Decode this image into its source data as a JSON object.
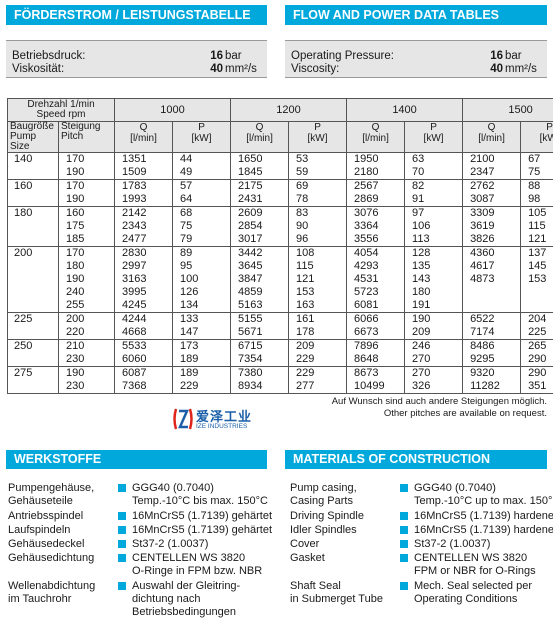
{
  "headers": {
    "left_title": "FÖRDERSTROM / LEISTUNGSTABELLE",
    "right_title": "FLOW AND POWER DATA TABLES"
  },
  "conditions": {
    "de": [
      {
        "label": "Betriebsdruck:",
        "value": "16",
        "unit": "bar"
      },
      {
        "label": "Viskosität:",
        "value": "40",
        "unit": "mm²/s"
      }
    ],
    "en": [
      {
        "label": "Operating Pressure:",
        "value": "16",
        "unit": "bar"
      },
      {
        "label": "Viscosity:",
        "value": "40",
        "unit": "mm²/s"
      }
    ]
  },
  "table": {
    "speed_label_de": "Drehzahl 1/min",
    "speed_label_en": "Speed rpm",
    "size_label_de": "Baugröße",
    "size_label_en": "Pump Size",
    "pitch_label_de": "Steigung",
    "pitch_label_en": "Pitch",
    "speeds": [
      "1000",
      "1200",
      "1400",
      "1500"
    ],
    "q_label": "Q",
    "q_unit": "[l/min]",
    "p_label": "P",
    "p_unit": "[kW]",
    "groups": [
      {
        "size": "140",
        "rows": [
          {
            "pitch": "170",
            "v": [
              "1351",
              "44",
              "1650",
              "53",
              "1950",
              "63",
              "2100",
              "67"
            ]
          },
          {
            "pitch": "190",
            "v": [
              "1509",
              "49",
              "1845",
              "59",
              "2180",
              "70",
              "2347",
              "75"
            ]
          }
        ]
      },
      {
        "size": "160",
        "rows": [
          {
            "pitch": "170",
            "v": [
              "1783",
              "57",
              "2175",
              "69",
              "2567",
              "82",
              "2762",
              "88"
            ]
          },
          {
            "pitch": "190",
            "v": [
              "1993",
              "64",
              "2431",
              "78",
              "2869",
              "91",
              "3087",
              "98"
            ]
          }
        ]
      },
      {
        "size": "180",
        "rows": [
          {
            "pitch": "160",
            "v": [
              "2142",
              "68",
              "2609",
              "83",
              "3076",
              "97",
              "3309",
              "105"
            ]
          },
          {
            "pitch": "175",
            "v": [
              "2343",
              "75",
              "2854",
              "90",
              "3364",
              "106",
              "3619",
              "115"
            ]
          },
          {
            "pitch": "185",
            "v": [
              "2477",
              "79",
              "3017",
              "96",
              "3556",
              "113",
              "3826",
              "121"
            ]
          }
        ]
      },
      {
        "size": "200",
        "rows": [
          {
            "pitch": "170",
            "v": [
              "2830",
              "89",
              "3442",
              "108",
              "4054",
              "128",
              "4360",
              "137"
            ]
          },
          {
            "pitch": "180",
            "v": [
              "2997",
              "95",
              "3645",
              "115",
              "4293",
              "135",
              "4617",
              "145"
            ]
          },
          {
            "pitch": "190",
            "v": [
              "3163",
              "100",
              "3847",
              "121",
              "4531",
              "143",
              "4873",
              "153"
            ]
          },
          {
            "pitch": "240",
            "v": [
              "3995",
              "126",
              "4859",
              "153",
              "5723",
              "180",
              "",
              ""
            ]
          },
          {
            "pitch": "255",
            "v": [
              "4245",
              "134",
              "5163",
              "163",
              "6081",
              "191",
              "",
              ""
            ]
          }
        ]
      },
      {
        "size": "225",
        "rows": [
          {
            "pitch": "200",
            "v": [
              "4244",
              "133",
              "5155",
              "161",
              "6066",
              "190",
              "6522",
              "204"
            ]
          },
          {
            "pitch": "220",
            "v": [
              "4668",
              "147",
              "5671",
              "178",
              "6673",
              "209",
              "7174",
              "225"
            ]
          }
        ]
      },
      {
        "size": "250",
        "rows": [
          {
            "pitch": "210",
            "v": [
              "5533",
              "173",
              "6715",
              "209",
              "7896",
              "246",
              "8486",
              "265"
            ]
          },
          {
            "pitch": "230",
            "v": [
              "6060",
              "189",
              "7354",
              "229",
              "8648",
              "270",
              "9295",
              "290"
            ]
          }
        ]
      },
      {
        "size": "275",
        "rows": [
          {
            "pitch": "190",
            "v": [
              "6087",
              "189",
              "7380",
              "229",
              "8673",
              "270",
              "9320",
              "290"
            ]
          },
          {
            "pitch": "230",
            "v": [
              "7368",
              "229",
              "8934",
              "277",
              "10499",
              "326",
              "11282",
              "351"
            ]
          }
        ]
      }
    ]
  },
  "notes": {
    "de": "Auf Wunsch sind auch andere Steigungen möglich.",
    "en": "Other pitches are available on request."
  },
  "logo": {
    "text_cn": "爱泽工业",
    "text_en": "IZE INDUSTRIES"
  },
  "materials": {
    "de_title": "WERKSTOFFE",
    "en_title": "MATERIALS OF CONSTRUCTION",
    "de": [
      {
        "part": [
          "Pumpengehäuse,",
          "Gehäuseteile"
        ],
        "mat": [
          "GGG40 (0.7040)",
          "Temp.-10°C bis max. 150°C"
        ]
      },
      {
        "part": [
          "Antriebsspindel"
        ],
        "mat": [
          "16MnCrS5 (1.7139) gehärtet"
        ]
      },
      {
        "part": [
          "Laufspindeln"
        ],
        "mat": [
          "16MnCrS5 (1.7139) gehärtet"
        ]
      },
      {
        "part": [
          "Gehäusedeckel"
        ],
        "mat": [
          "St37-2 (1.0037)"
        ]
      },
      {
        "part": [
          "Gehäusedichtung"
        ],
        "mat": [
          "CENTELLEN WS 3820",
          "O-Ringe in FPM bzw. NBR"
        ]
      },
      {
        "part": [
          "Wellenabdichtung",
          "im Tauchrohr"
        ],
        "mat": [
          "Auswahl der Gleitring-",
          "dichtung nach",
          "Betriebsbedingungen"
        ]
      }
    ],
    "en": [
      {
        "part": [
          "Pump casing,",
          "Casing Parts"
        ],
        "mat": [
          "GGG40 (0.7040)",
          "Temp.-10°C up to max. 150°C"
        ]
      },
      {
        "part": [
          "Driving Spindle"
        ],
        "mat": [
          "16MnCrS5 (1.7139) hardened"
        ]
      },
      {
        "part": [
          "Idler Spindles"
        ],
        "mat": [
          "16MnCrS5 (1.7139) hardened"
        ]
      },
      {
        "part": [
          "Cover"
        ],
        "mat": [
          "St37-2 (1.0037)"
        ]
      },
      {
        "part": [
          "Gasket"
        ],
        "mat": [
          "CENTELLEN WS 3820",
          "FPM or NBR for O-Rings"
        ]
      },
      {
        "part": [
          "Shaft Seal",
          "in Submerget Tube"
        ],
        "mat": [
          "Mech. Seal selected per",
          "Operating Conditions"
        ]
      }
    ]
  },
  "colors": {
    "accent": "#00a8dc",
    "box_gray": "#e6e6e6",
    "logo_red": "#e0261b"
  }
}
